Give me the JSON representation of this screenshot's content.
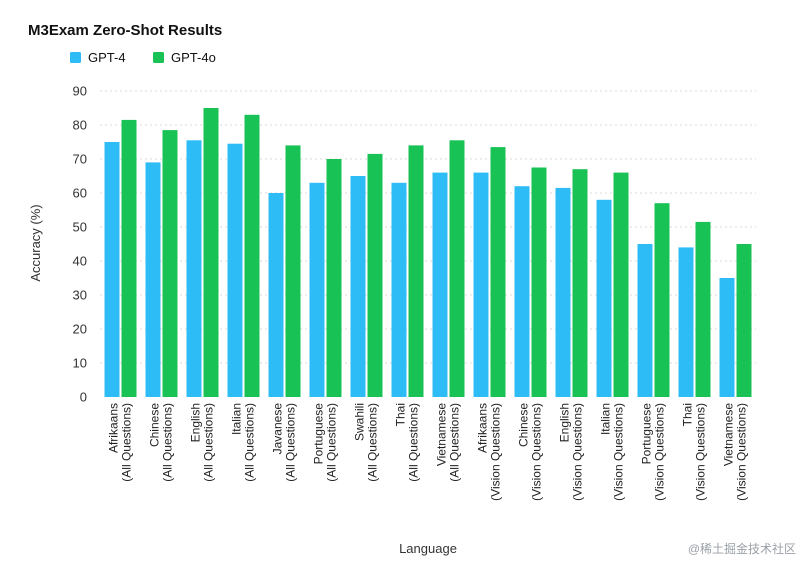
{
  "chart_data": {
    "type": "bar",
    "title": "M3Exam Zero-Shot Results",
    "xlabel": "Language",
    "ylabel": "Accuracy (%)",
    "ylim": [
      0,
      90
    ],
    "yticks": [
      0,
      10,
      20,
      30,
      40,
      50,
      60,
      70,
      80,
      90
    ],
    "grid": true,
    "legend_position": "top-left",
    "categories": [
      [
        "Afrikaans",
        "(All Questions)"
      ],
      [
        "Chinese",
        "(All Questions)"
      ],
      [
        "English",
        "(All Questions)"
      ],
      [
        "Italian",
        "(All Questions)"
      ],
      [
        "Javanese",
        "(All Questions)"
      ],
      [
        "Portuguese",
        "(All Questions)"
      ],
      [
        "Swahili",
        "(All Questions)"
      ],
      [
        "Thai",
        "(All Questions)"
      ],
      [
        "Vietnamese",
        "(All Questions)"
      ],
      [
        "Afrikaans",
        "(Vision Questions)"
      ],
      [
        "Chinese",
        "(Vision Questions)"
      ],
      [
        "English",
        "(Vision Questions)"
      ],
      [
        "Italian",
        "(Vision Questions)"
      ],
      [
        "Portuguese",
        "(Vision Questions)"
      ],
      [
        "Thai",
        "(Vision Questions)"
      ],
      [
        "Vietnamese",
        "(Vision Questions)"
      ]
    ],
    "series": [
      {
        "name": "GPT-4",
        "color": "#2dbcf5",
        "values": [
          75,
          69,
          75.5,
          74.5,
          60,
          63,
          65,
          63,
          66,
          66,
          62,
          61.5,
          58,
          45,
          44,
          35
        ]
      },
      {
        "name": "GPT-4o",
        "color": "#19c255",
        "values": [
          81.5,
          78.5,
          85,
          83,
          74,
          70,
          71.5,
          74,
          75.5,
          73.5,
          67.5,
          67,
          66,
          57,
          51.5,
          45
        ]
      }
    ]
  },
  "watermark": "@稀土掘金技术社区"
}
